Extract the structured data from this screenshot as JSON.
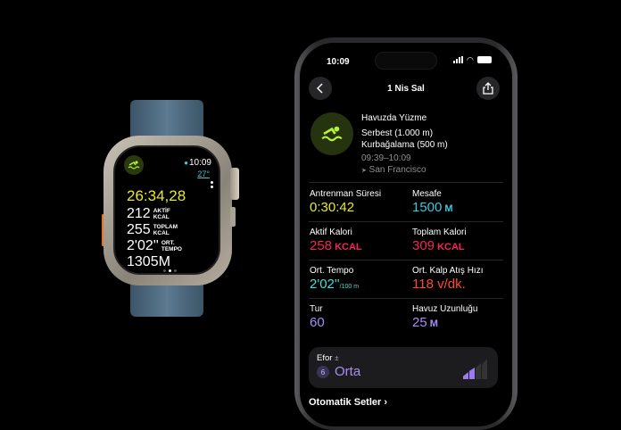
{
  "colors": {
    "yellow": "#e6e82b",
    "cyan": "#3cc8e0",
    "red": "#f0265a",
    "teal": "#45e0d8",
    "orange": "#ff4a2a",
    "purple": "#a98cf5",
    "green": "#b4f03c"
  },
  "watch": {
    "time": "10:09",
    "temp": "27°",
    "elapsed": "26:34,28",
    "rows": [
      {
        "value": "212",
        "label1": "AKTİF",
        "label2": "KCAL"
      },
      {
        "value": "255",
        "label1": "TOPLAM",
        "label2": "KCAL"
      },
      {
        "value": "2'02''",
        "label1": "ORT.",
        "label2": "TEMPO"
      }
    ],
    "distance": "1305M",
    "page_index": 1,
    "page_count": 3,
    "icon": "swimmer-icon"
  },
  "phone": {
    "status_time": "10:09",
    "title": "1 Nis Sal",
    "workout": {
      "name": "Havuzda Yüzme",
      "strokes": [
        "Serbest (1.000 m)",
        "Kurbağalama (500 m)"
      ],
      "time_range": "09:39–10:09",
      "location": "San Francisco"
    },
    "metrics": [
      {
        "label": "Antrenman Süresi",
        "value": "0:30:42",
        "unit": "",
        "color": "#e6e82b"
      },
      {
        "label": "Mesafe",
        "value": "1500",
        "unit": " M",
        "color": "#3cc8e0"
      },
      {
        "label": "Aktif Kalori",
        "value": "258",
        "unit": " KCAL",
        "color": "#f0265a"
      },
      {
        "label": "Toplam Kalori",
        "value": "309",
        "unit": " KCAL",
        "color": "#f0265a"
      },
      {
        "label": "Ort. Tempo",
        "value": "2'02''",
        "unit": "/100 m",
        "color": "#45e0d8"
      },
      {
        "label": "Ort. Kalp Atış Hızı",
        "value": "118 v/dk.",
        "unit": "",
        "color": "#ff4a2a"
      },
      {
        "label": "Tur",
        "value": "60",
        "unit": "",
        "color": "#a98cf5"
      },
      {
        "label": "Havuz Uzunluğu",
        "value": "25",
        "unit": " M",
        "color": "#a98cf5"
      }
    ],
    "effort": {
      "label": "Efor",
      "symbol": "±",
      "score": "6",
      "level": "Orta",
      "bars_filled": 2,
      "bars_total": 4
    },
    "next_section": "Otomatik Setler"
  }
}
